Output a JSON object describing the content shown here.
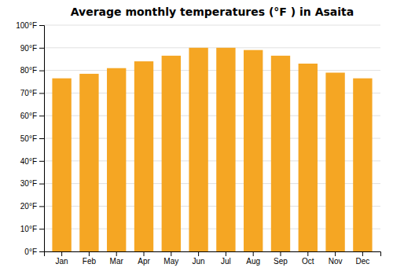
{
  "chart_data": {
    "type": "bar",
    "title": "Average monthly temperatures (°F ) in Asaita",
    "categories": [
      "Jan",
      "Feb",
      "Mar",
      "Apr",
      "May",
      "Jun",
      "Jul",
      "Aug",
      "Sep",
      "Oct",
      "Nov",
      "Dec"
    ],
    "values": [
      76.5,
      78.5,
      81.0,
      84.0,
      86.5,
      90.0,
      90.0,
      89.0,
      86.5,
      83.0,
      79.0,
      76.5
    ],
    "color": "#F5A623",
    "ylim": [
      0,
      100
    ],
    "yticks": [
      {
        "value": 0,
        "label": "0°F"
      },
      {
        "value": 10,
        "label": "10°F"
      },
      {
        "value": 20,
        "label": "20°F"
      },
      {
        "value": 30,
        "label": "30°F"
      },
      {
        "value": 40,
        "label": "40°F"
      },
      {
        "value": 50,
        "label": "50°F"
      },
      {
        "value": 60,
        "label": "60°F"
      },
      {
        "value": 70,
        "label": "70°F"
      },
      {
        "value": 80,
        "label": "80°F"
      },
      {
        "value": 90,
        "label": "90°F"
      },
      {
        "value": 100,
        "label": "100°F"
      }
    ],
    "grid": true
  }
}
